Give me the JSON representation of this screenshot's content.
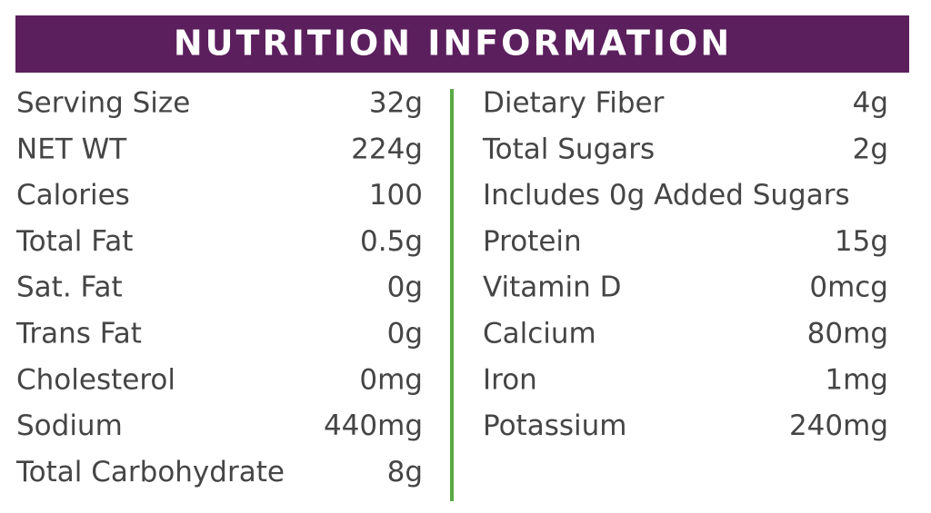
{
  "header": {
    "title": "NUTRITION INFORMATION"
  },
  "left": {
    "rows": [
      {
        "label": "Serving Size",
        "value": "32g"
      },
      {
        "label": "NET WT",
        "value": "224g"
      },
      {
        "label": "Calories",
        "value": "100"
      },
      {
        "label": "Total Fat",
        "value": "0.5g"
      },
      {
        "label": "Sat. Fat",
        "value": "0g"
      },
      {
        "label": "Trans Fat",
        "value": "0g"
      },
      {
        "label": "Cholesterol",
        "value": "0mg"
      },
      {
        "label": "Sodium",
        "value": "440mg"
      },
      {
        "label": "Total Carbohydrate",
        "value": "8g"
      }
    ]
  },
  "right": {
    "rows": [
      {
        "label": "Dietary Fiber",
        "value": "4g"
      },
      {
        "label": "Total Sugars",
        "value": "2g"
      },
      {
        "label": "Includes 0g Added Sugars"
      },
      {
        "label": "Protein",
        "value": "15g"
      },
      {
        "label": "Vitamin D",
        "value": "0mcg"
      },
      {
        "label": "Calcium",
        "value": "80mg"
      },
      {
        "label": "Iron",
        "value": "1mg"
      },
      {
        "label": "Potassium",
        "value": "240mg"
      }
    ]
  }
}
